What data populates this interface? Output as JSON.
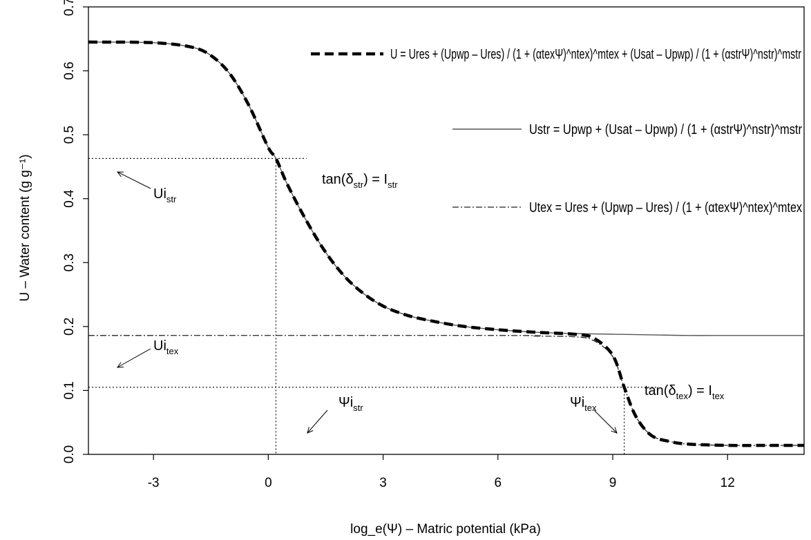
{
  "chart_data": {
    "type": "line",
    "title": "",
    "xlabel": "log_e(Ψ) – Matric potential (kPa)",
    "ylabel": "U – Water content (g g⁻¹)",
    "xlim": [
      -4.7,
      14
    ],
    "ylim": [
      0,
      0.7
    ],
    "x_ticks": [
      -3,
      0,
      3,
      6,
      9,
      12
    ],
    "x_tick_labels": [
      "-3",
      "0",
      "3",
      "6",
      "9",
      "12"
    ],
    "y_ticks": [
      0.0,
      0.1,
      0.2,
      0.3,
      0.4,
      0.5,
      0.6,
      0.7
    ],
    "y_tick_labels": [
      "0.0",
      "0.1",
      "0.2",
      "0.3",
      "0.4",
      "0.5",
      "0.6",
      "0.7"
    ],
    "grid": false,
    "series": [
      {
        "id": "total",
        "style": "thick-dashed",
        "x": [
          -4.7,
          -3,
          -2,
          -1.5,
          -1,
          -0.5,
          0,
          0.2,
          0.5,
          1,
          1.5,
          2,
          2.5,
          3,
          3.5,
          4,
          5,
          6,
          7,
          8,
          8.5,
          9,
          9.3,
          9.6,
          10,
          10.5,
          11,
          12,
          13,
          14
        ],
        "values": [
          0.645,
          0.644,
          0.637,
          0.624,
          0.595,
          0.545,
          0.48,
          0.463,
          0.422,
          0.365,
          0.316,
          0.278,
          0.251,
          0.232,
          0.22,
          0.212,
          0.201,
          0.195,
          0.191,
          0.188,
          0.182,
          0.155,
          0.105,
          0.06,
          0.03,
          0.02,
          0.016,
          0.014,
          0.014,
          0.014
        ]
      },
      {
        "id": "structural",
        "style": "solid",
        "x": [
          -4.7,
          -3,
          -2,
          -1.5,
          -1,
          -0.5,
          0,
          0.2,
          0.5,
          1,
          1.5,
          2,
          2.5,
          3,
          3.5,
          4,
          5,
          6,
          7,
          8,
          9,
          10,
          11,
          12,
          13,
          14
        ],
        "values": [
          0.645,
          0.644,
          0.637,
          0.624,
          0.595,
          0.545,
          0.48,
          0.463,
          0.422,
          0.365,
          0.316,
          0.278,
          0.251,
          0.232,
          0.22,
          0.212,
          0.201,
          0.195,
          0.191,
          0.189,
          0.188,
          0.187,
          0.186,
          0.186,
          0.186,
          0.186
        ]
      },
      {
        "id": "textural",
        "style": "dot-dash",
        "x": [
          -4.7,
          6,
          7,
          8,
          8.5,
          9,
          9.3,
          9.6,
          10,
          10.5,
          11,
          12,
          13,
          14
        ],
        "values": [
          0.186,
          0.186,
          0.185,
          0.184,
          0.178,
          0.153,
          0.105,
          0.06,
          0.03,
          0.02,
          0.016,
          0.014,
          0.014,
          0.014
        ]
      }
    ],
    "inflection_structural": {
      "x": 0.2,
      "y": 0.463
    },
    "inflection_textural": {
      "x": 9.3,
      "y": 0.105
    },
    "ui_str_level": 0.463,
    "ui_tex_level": 0.105,
    "textural_asymptote": 0.186,
    "annotations": {
      "ui_str": {
        "main": "Ui",
        "sub": "str"
      },
      "ui_tex": {
        "main": "Ui",
        "sub": "tex"
      },
      "psi_i_str": {
        "main": "Ψi",
        "sub": "str"
      },
      "psi_i_tex": {
        "main": "Ψi",
        "sub": "tex"
      },
      "tan_str": {
        "pre": "tan(δ",
        "sub1": "str",
        "mid": ") = I",
        "sub2": "str"
      },
      "tan_tex": {
        "pre": "tan(δ",
        "sub1": "tex",
        "mid": ") = I",
        "sub2": "tex"
      }
    },
    "legend": {
      "placement": "top-right",
      "eq_total": "U = Ures + (Upwp – Ures) / (1 + (αtexΨ)^ntex)^mtex + (Usat – Upwp) / (1 + (αstrΨ)^nstr)^mstr",
      "eq_str": "Ustr = Upwp + (Usat – Upwp) / (1 + (αstrΨ)^nstr)^mstr",
      "eq_tex": "Utex = Ures + (Upwp – Ures) / (1 + (αtexΨ)^ntex)^mtex"
    },
    "colors": {
      "total": "#000000",
      "structural": "#555555",
      "textural": "#222222"
    }
  }
}
